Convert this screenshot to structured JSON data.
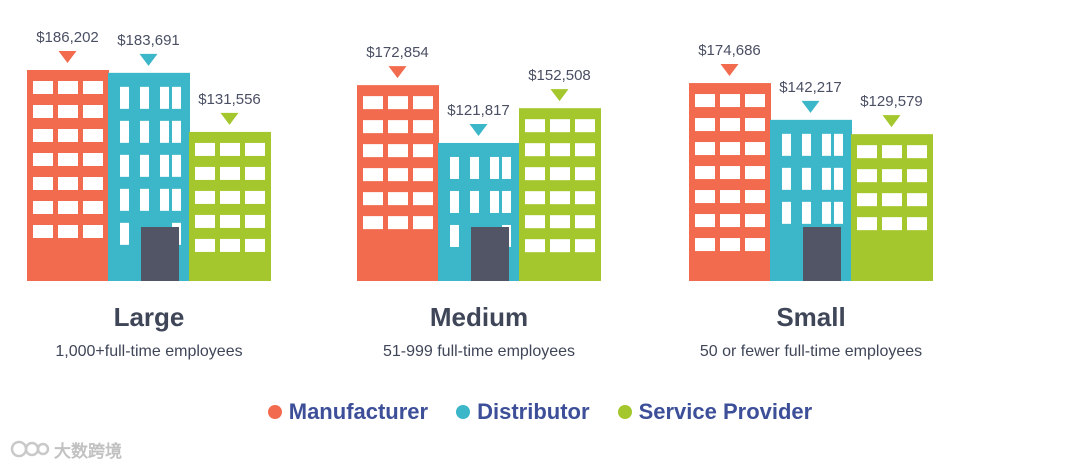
{
  "chart_data": {
    "type": "bar",
    "categories": [
      "Large",
      "Medium",
      "Small"
    ],
    "category_subtitles": [
      "1,000+full-time employees",
      "51-999 full-time employees",
      "50 or fewer full-time employees"
    ],
    "series": [
      {
        "name": "Manufacturer",
        "color": "#f26b4e",
        "values": [
          186202,
          172854,
          174686
        ],
        "labels": [
          "$186,202",
          "$172,854",
          "$174,686"
        ]
      },
      {
        "name": "Distributor",
        "color": "#3cb6c9",
        "values": [
          183691,
          121817,
          142217
        ],
        "labels": [
          "$183,691",
          "$121,817",
          "$142,217"
        ]
      },
      {
        "name": "Service Provider",
        "color": "#a3c72c",
        "values": [
          131556,
          152508,
          129579
        ],
        "labels": [
          "$131,556",
          "$152,508",
          "$129,579"
        ]
      }
    ],
    "door_color": "#525566",
    "window_color": "#ffffff",
    "legend_position": "bottom-center",
    "grid": false
  },
  "watermark": {
    "text": "大数跨境"
  }
}
